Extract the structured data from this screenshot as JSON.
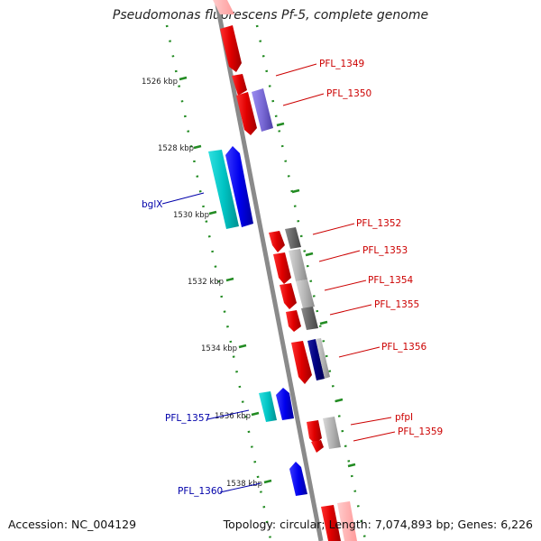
{
  "title": "Pseudomonas fluorescens Pf-5, complete genome",
  "accession": "Accession: NC_004129",
  "summary": "Topology: circular; Length: 7,074,893 bp; Genes: 6,226",
  "ticks": [
    {
      "label": "1526 kbp"
    },
    {
      "label": "1528 kbp"
    },
    {
      "label": "1530 kbp"
    },
    {
      "label": "1532 kbp"
    },
    {
      "label": "1534 kbp"
    },
    {
      "label": "1536 kbp"
    },
    {
      "label": "1538 kbp"
    }
  ],
  "gene_labels": [
    {
      "text": "PFL_1349",
      "side": "right",
      "color": "#cc0000"
    },
    {
      "text": "PFL_1350",
      "side": "right",
      "color": "#cc0000"
    },
    {
      "text": "bglX",
      "side": "left",
      "color": "#0000aa"
    },
    {
      "text": "PFL_1352",
      "side": "right",
      "color": "#cc0000"
    },
    {
      "text": "PFL_1353",
      "side": "right",
      "color": "#cc0000"
    },
    {
      "text": "PFL_1354",
      "side": "right",
      "color": "#cc0000"
    },
    {
      "text": "PFL_1355",
      "side": "right",
      "color": "#cc0000"
    },
    {
      "text": "PFL_1356",
      "side": "right",
      "color": "#cc0000"
    },
    {
      "text": "PFL_1357",
      "side": "left",
      "color": "#0000aa"
    },
    {
      "text": "pfpI",
      "side": "right",
      "color": "#cc0000"
    },
    {
      "text": "PFL_1359",
      "side": "right",
      "color": "#cc0000"
    },
    {
      "text": "PFL_1360",
      "side": "left",
      "color": "#0000aa"
    }
  ],
  "colors": {
    "backbone": "#8a8a8a",
    "ticks": "#228b22",
    "forward_cds": "#ee0000",
    "reverse_cds": "#0000ee",
    "cyan_feature": "#00c8c8",
    "purple_feature": "#7a6ad6",
    "gray_feature": "#9a9a9a",
    "navy_feature": "#000080"
  }
}
